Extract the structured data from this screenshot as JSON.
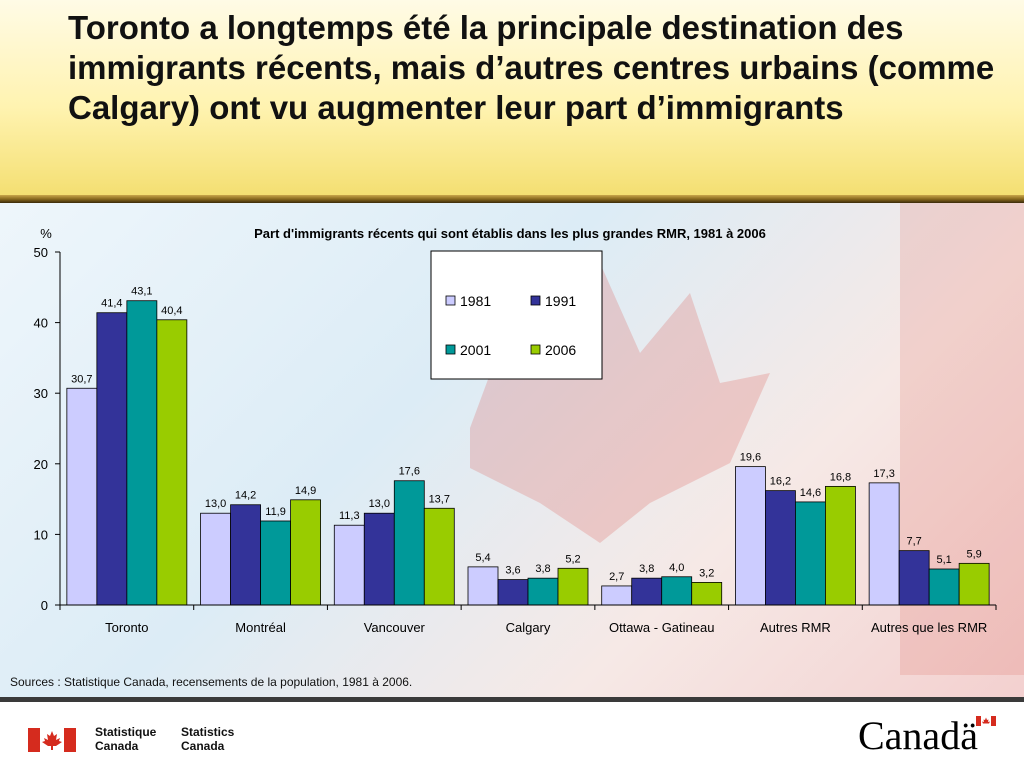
{
  "slide_title": "Toronto a longtemps été la principale destination des immigrants récents, mais d’autres centres urbains (comme Calgary) ont vu augmenter leur part d’immigrants",
  "source_note": "Sources : Statistique Canada, recensements de la  population, 1981 à 2006.",
  "footer": {
    "wordmark_fr": [
      "Statistique",
      "Canada"
    ],
    "wordmark_en": [
      "Statistics",
      "Canada"
    ],
    "canada_wordmark": "Canadä",
    "flag_icon": "canada-flag-icon"
  },
  "colors": {
    "s1981": "#ccccff",
    "s1991": "#333399",
    "s2001": "#009999",
    "s2006": "#99cc00",
    "flag_red": "#d52b1e"
  },
  "chart_data": {
    "type": "bar",
    "title": "Part d'immigrants récents qui sont établis dans les plus grandes RMR, 1981 à 2006",
    "ylabel": "%",
    "xlabel": "",
    "ylim": [
      0,
      50
    ],
    "yticks": [
      0,
      10,
      20,
      30,
      40,
      50
    ],
    "grid": false,
    "legend_position": "top-right",
    "categories": [
      "Toronto",
      "Montréal",
      "Vancouver",
      "Calgary",
      "Ottawa - Gatineau",
      "Autres RMR",
      "Autres que les RMR"
    ],
    "series": [
      {
        "name": "1981",
        "values": [
          30.7,
          13.0,
          11.3,
          5.4,
          2.7,
          19.6,
          17.3
        ]
      },
      {
        "name": "1991",
        "values": [
          41.4,
          14.2,
          13.0,
          3.6,
          3.8,
          16.2,
          7.7
        ]
      },
      {
        "name": "2001",
        "values": [
          43.1,
          11.9,
          17.6,
          3.8,
          4.0,
          14.6,
          5.1
        ]
      },
      {
        "name": "2006",
        "values": [
          40.4,
          14.9,
          13.7,
          5.2,
          3.2,
          16.8,
          5.9
        ]
      }
    ]
  }
}
